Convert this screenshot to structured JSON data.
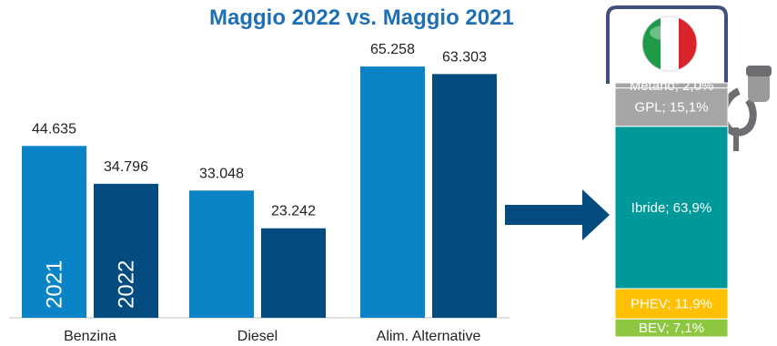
{
  "title": "Maggio 2022 vs. Maggio 2021",
  "chart_data": [
    {
      "type": "bar",
      "title": "Maggio 2022 vs. Maggio 2021",
      "categories": [
        "Benzina",
        "Diesel",
        "Alim. Alternative"
      ],
      "series": [
        {
          "name": "2021",
          "values": [
            44635,
            33048,
            65258
          ],
          "labels": [
            "44.635",
            "33.048",
            "65.258"
          ],
          "color": "#0a84c6"
        },
        {
          "name": "2022",
          "values": [
            34796,
            23242,
            63303
          ],
          "labels": [
            "34.796",
            "23.242",
            "63.303"
          ],
          "color": "#044b80"
        }
      ],
      "ylim": [
        0,
        70000
      ],
      "grid": false
    },
    {
      "type": "bar",
      "stacked": true,
      "categories": [
        "BEV",
        "PHEV",
        "Ibride",
        "GPL",
        "Metano"
      ],
      "values": [
        7.1,
        11.9,
        63.9,
        15.1,
        2.0
      ],
      "labels": [
        "BEV; 7,1%",
        "PHEV; 11,9%",
        "Ibride; 63,9%",
        "GPL; 15,1%",
        "Metano; 2,0%"
      ],
      "colors": [
        "#8dc63f",
        "#ffc000",
        "#009999",
        "#a6a6a6",
        "#a6a6a6"
      ]
    }
  ],
  "colors": {
    "title": "#1f6fb5",
    "arrow": "#044b80",
    "pump_outline": "#404e7c",
    "hose": "#6d6e71"
  },
  "icons": {
    "flag": "italian-flag-icon",
    "pump": "fuel-pump-icon",
    "arrow": "right-arrow-icon"
  }
}
